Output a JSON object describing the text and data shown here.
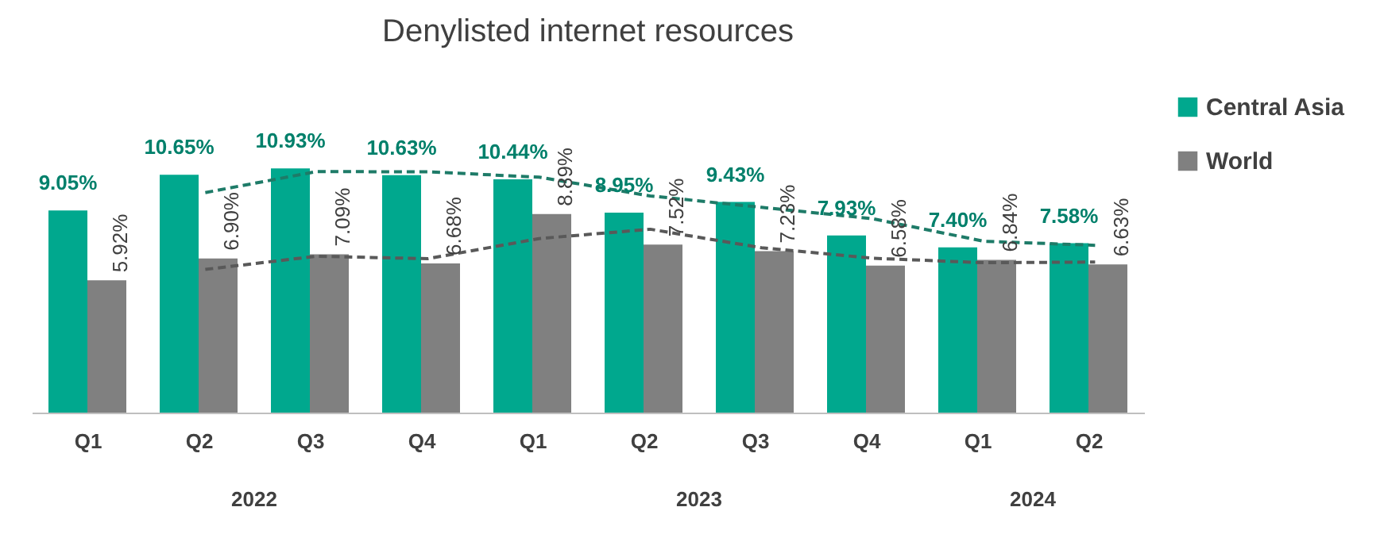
{
  "chart_data": {
    "type": "bar",
    "title": "Denylisted internet resources",
    "categories": [
      "Q1",
      "Q2",
      "Q3",
      "Q4",
      "Q1",
      "Q2",
      "Q3",
      "Q4",
      "Q1",
      "Q2"
    ],
    "series": [
      {
        "name": "Central Asia",
        "type": "bar",
        "color": "#00a88e",
        "values": [
          9.05,
          10.65,
          10.93,
          10.63,
          10.44,
          8.95,
          9.43,
          7.93,
          7.4,
          7.58
        ],
        "value_labels": [
          "9.05%",
          "10.65%",
          "10.93%",
          "10.63%",
          "10.44%",
          "8.95%",
          "9.43%",
          "7.93%",
          "7.40%",
          "7.58%"
        ]
      },
      {
        "name": "World",
        "type": "bar",
        "color": "#808080",
        "values": [
          5.92,
          6.9,
          7.09,
          6.68,
          8.89,
          7.52,
          7.23,
          6.58,
          6.84,
          6.63
        ],
        "value_labels": [
          "5.92%",
          "6.90%",
          "7.09%",
          "6.68%",
          "8.89%",
          "7.52%",
          "7.23%",
          "6.58%",
          "6.84%",
          "6.63%"
        ]
      },
      {
        "type": "line",
        "color": "#1e7b68",
        "line_style": "dashed",
        "values": [
          null,
          9.85,
          10.79,
          10.78,
          10.54,
          9.7,
          9.19,
          8.68,
          7.67,
          7.49
        ]
      },
      {
        "type": "line",
        "color": "#595959",
        "line_style": "dashed",
        "values": [
          null,
          6.41,
          7.0,
          6.89,
          7.79,
          8.21,
          7.38,
          6.91,
          6.71,
          6.74
        ]
      }
    ],
    "legend": "right",
    "annotations": [
      "2022",
      "2023",
      "2024"
    ]
  }
}
